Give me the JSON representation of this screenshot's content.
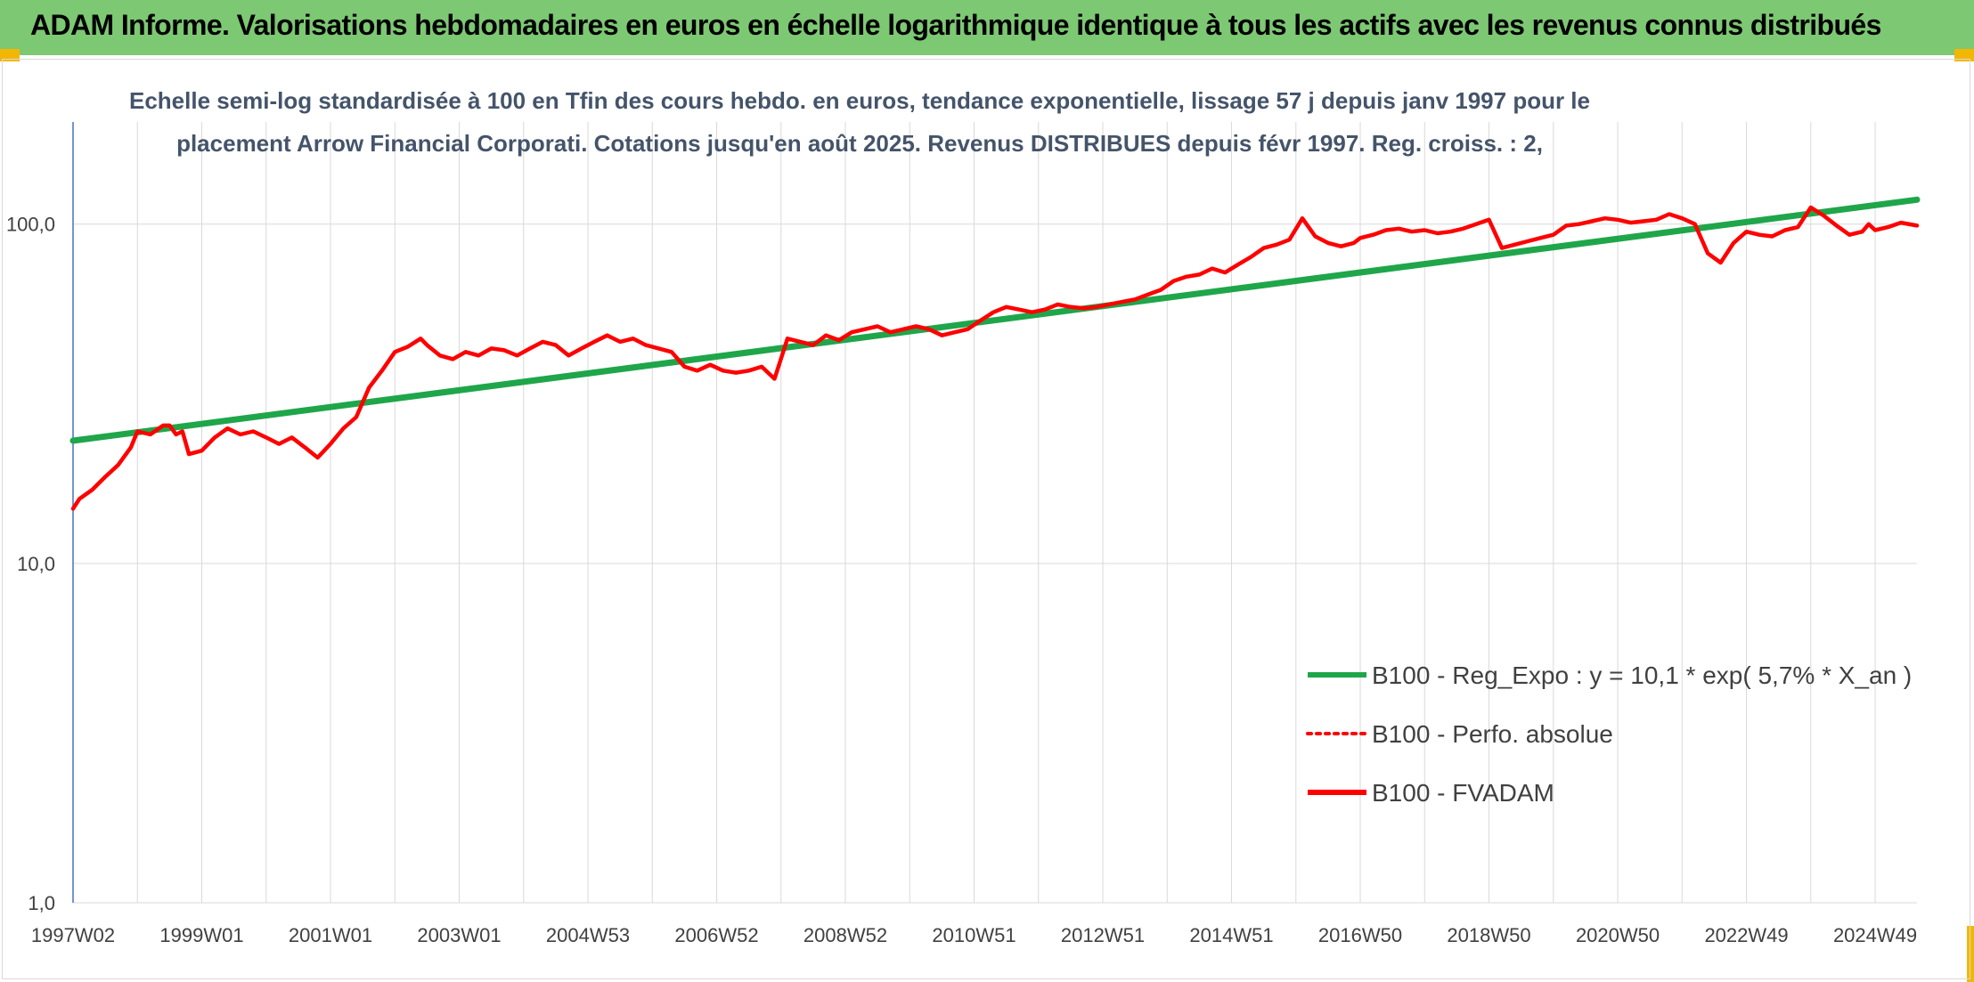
{
  "banner": {
    "title": "ADAM Informe. Valorisations hebdomadaires en euros en échelle logarithmique identique à tous les actifs avec les revenus connus distribués"
  },
  "colors": {
    "banner_bg": "#7dc873",
    "corner_accent": "#f2b705",
    "trend_line": "#1fa64a",
    "fvadam_line": "#ff0000",
    "perfo_line": "#ff0000",
    "gridline": "#d9d9d9",
    "axis_line": "#4472c4",
    "subtitle_text": "#44546a"
  },
  "chart_data": {
    "type": "line",
    "subtitle_line1": "Echelle semi-log standardisée à 100 en Tfin des cours hebdo. en euros, tendance exponentielle, lissage 57 j depuis janv 1997 pour le",
    "subtitle_line2": "placement Arrow Financial Corporati. Cotations jusqu'en août 2025. Revenus DISTRIBUES depuis févr 1997. Reg. croiss. : 2,",
    "y_scale": "log",
    "ylim": [
      1,
      200
    ],
    "y_ticks": [
      {
        "value": 1,
        "label": "1,0"
      },
      {
        "value": 10,
        "label": "10,0"
      },
      {
        "value": 100,
        "label": "100,0"
      }
    ],
    "xlim": [
      1997.0,
      2025.65
    ],
    "x_ticks": [
      {
        "value": 1997.0,
        "label": "1997W02"
      },
      {
        "value": 1999.0,
        "label": "1999W01"
      },
      {
        "value": 2001.0,
        "label": "2001W01"
      },
      {
        "value": 2003.0,
        "label": "2003W01"
      },
      {
        "value": 2005.0,
        "label": "2004W53"
      },
      {
        "value": 2007.0,
        "label": "2006W52"
      },
      {
        "value": 2009.0,
        "label": "2008W52"
      },
      {
        "value": 2011.0,
        "label": "2010W51"
      },
      {
        "value": 2013.0,
        "label": "2012W51"
      },
      {
        "value": 2015.0,
        "label": "2014W51"
      },
      {
        "value": 2017.0,
        "label": "2016W50"
      },
      {
        "value": 2019.0,
        "label": "2018W50"
      },
      {
        "value": 2021.0,
        "label": "2020W50"
      },
      {
        "value": 2023.0,
        "label": "2022W49"
      },
      {
        "value": 2025.0,
        "label": "2024W49"
      }
    ],
    "grid_years": [
      1997.0,
      1998.0,
      1999.0,
      2000.0,
      2001.0,
      2002.0,
      2003.0,
      2004.0,
      2005.0,
      2006.0,
      2007.0,
      2008.0,
      2009.0,
      2010.0,
      2011.0,
      2012.0,
      2013.0,
      2014.0,
      2015.0,
      2016.0,
      2017.0,
      2018.0,
      2019.0,
      2020.0,
      2021.0,
      2022.0,
      2023.0,
      2024.0,
      2025.0
    ],
    "legend_position": "right",
    "series": [
      {
        "name": "B100 - Reg_Expo : y = 10,1 * exp( 5,7% *  X_an )",
        "style": "thick-solid",
        "color": "#1fa64a",
        "x": [
          1997.0,
          2025.65
        ],
        "values": [
          23.0,
          118.0
        ]
      },
      {
        "name": "B100 - Perfo. absolue",
        "style": "dotted",
        "color": "#ff0000",
        "x": [],
        "values": []
      },
      {
        "name": "B100 - FVADAM",
        "style": "thick-solid",
        "color": "#ff0000",
        "x": [
          1997.0,
          1997.1,
          1997.3,
          1997.5,
          1997.7,
          1997.9,
          1998.0,
          1998.2,
          1998.4,
          1998.5,
          1998.6,
          1998.7,
          1998.8,
          1999.0,
          1999.2,
          1999.4,
          1999.6,
          1999.8,
          2000.0,
          2000.2,
          2000.4,
          2000.6,
          2000.8,
          2001.0,
          2001.2,
          2001.4,
          2001.6,
          2001.8,
          2002.0,
          2002.2,
          2002.4,
          2002.5,
          2002.7,
          2002.9,
          2003.1,
          2003.3,
          2003.5,
          2003.7,
          2003.9,
          2004.1,
          2004.3,
          2004.5,
          2004.7,
          2004.9,
          2005.1,
          2005.3,
          2005.5,
          2005.7,
          2005.9,
          2006.1,
          2006.3,
          2006.5,
          2006.7,
          2006.9,
          2007.1,
          2007.3,
          2007.5,
          2007.7,
          2007.9,
          2008.1,
          2008.3,
          2008.5,
          2008.7,
          2008.9,
          2009.1,
          2009.3,
          2009.5,
          2009.7,
          2009.9,
          2010.1,
          2010.3,
          2010.5,
          2010.7,
          2010.9,
          2011.1,
          2011.3,
          2011.5,
          2011.7,
          2011.9,
          2012.1,
          2012.3,
          2012.5,
          2012.7,
          2012.9,
          2013.1,
          2013.3,
          2013.5,
          2013.7,
          2013.9,
          2014.1,
          2014.3,
          2014.5,
          2014.7,
          2014.9,
          2015.1,
          2015.3,
          2015.5,
          2015.7,
          2015.9,
          2016.1,
          2016.3,
          2016.5,
          2016.7,
          2016.9,
          2017.0,
          2017.2,
          2017.4,
          2017.6,
          2017.8,
          2018.0,
          2018.2,
          2018.4,
          2018.6,
          2018.8,
          2019.0,
          2019.2,
          2019.4,
          2019.6,
          2019.8,
          2020.0,
          2020.2,
          2020.4,
          2020.6,
          2020.8,
          2021.0,
          2021.2,
          2021.4,
          2021.6,
          2021.8,
          2022.0,
          2022.2,
          2022.4,
          2022.6,
          2022.8,
          2023.0,
          2023.2,
          2023.4,
          2023.6,
          2023.8,
          2024.0,
          2024.2,
          2024.4,
          2024.6,
          2024.8,
          2024.9,
          2025.0,
          2025.2,
          2025.4,
          2025.65
        ],
        "values": [
          14.5,
          15.5,
          16.5,
          18.0,
          19.5,
          22.0,
          24.5,
          24.0,
          25.5,
          25.5,
          24.0,
          24.5,
          21.0,
          21.5,
          23.5,
          25.0,
          24.0,
          24.5,
          23.5,
          22.5,
          23.5,
          22.0,
          20.5,
          22.5,
          25.0,
          27.0,
          33.0,
          37.0,
          42.0,
          43.5,
          46.0,
          44.0,
          41.0,
          40.0,
          42.0,
          41.0,
          43.0,
          42.5,
          41.0,
          43.0,
          45.0,
          44.0,
          41.0,
          43.0,
          45.0,
          47.0,
          45.0,
          46.0,
          44.0,
          43.0,
          42.0,
          38.0,
          37.0,
          38.5,
          37.0,
          36.5,
          37.0,
          38.0,
          35.0,
          46.0,
          45.0,
          44.0,
          47.0,
          45.5,
          48.0,
          49.0,
          50.0,
          48.0,
          49.0,
          50.0,
          49.0,
          47.0,
          48.0,
          49.0,
          52.0,
          55.0,
          57.0,
          56.0,
          55.0,
          56.0,
          58.0,
          57.0,
          56.5,
          57.0,
          58.0,
          59.0,
          60.0,
          62.0,
          64.0,
          68.0,
          70.0,
          71.0,
          74.0,
          72.0,
          76.0,
          80.0,
          85.0,
          87.0,
          90.0,
          104.0,
          92.0,
          88.0,
          86.0,
          88.0,
          91.0,
          93.0,
          96.0,
          97.0,
          95.0,
          96.0,
          94.0,
          95.0,
          97.0,
          100.0,
          103.0,
          85.0,
          87.0,
          89.0,
          91.0,
          93.0,
          99.0,
          100.0,
          102.0,
          104.0,
          103.0,
          101.0,
          102.0,
          103.0,
          107.0,
          104.0,
          100.0,
          82.0,
          77.0,
          88.0,
          95.0,
          93.0,
          92.0,
          96.0,
          98.0,
          112.0,
          106.0,
          99.0,
          93.0,
          95.0,
          100.0,
          96.0,
          98.0,
          101.0,
          99.0
        ]
      }
    ]
  }
}
